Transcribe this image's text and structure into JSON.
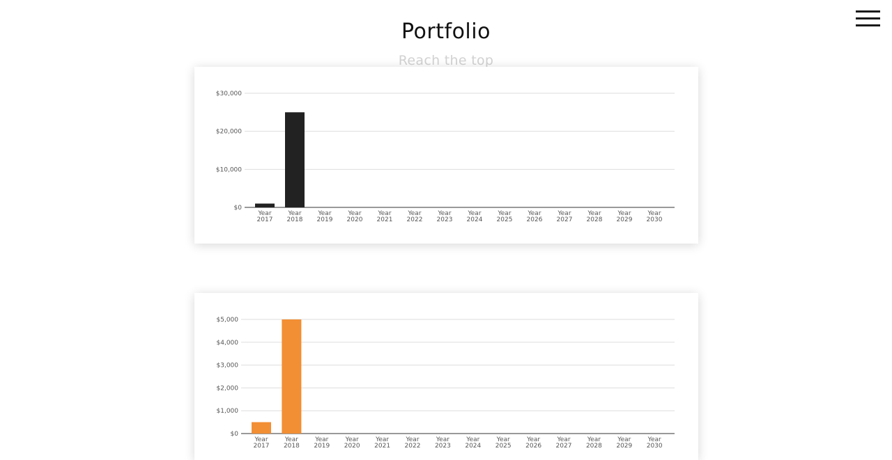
{
  "header": {
    "title": "Portfolio",
    "subtitle": "Reach the top",
    "menu_icon": "hamburger-menu-icon"
  },
  "chart_data": [
    {
      "type": "bar",
      "categories": [
        "Year 2017",
        "Year 2018",
        "Year 2019",
        "Year 2020",
        "Year 2021",
        "Year 2022",
        "Year 2023",
        "Year 2024",
        "Year 2025",
        "Year 2026",
        "Year 2027",
        "Year 2028",
        "Year 2029",
        "Year 2030"
      ],
      "values": [
        1000,
        25000,
        0,
        0,
        0,
        0,
        0,
        0,
        0,
        0,
        0,
        0,
        0,
        0
      ],
      "ylim": [
        0,
        30000
      ],
      "yticks": [
        0,
        10000,
        20000,
        30000
      ],
      "ytick_labels": [
        "$0",
        "$10,000",
        "$20,000",
        "$30,000"
      ],
      "grid": true,
      "color": "#222222"
    },
    {
      "type": "bar",
      "categories": [
        "Year 2017",
        "Year 2018",
        "Year 2019",
        "Year 2020",
        "Year 2021",
        "Year 2022",
        "Year 2023",
        "Year 2024",
        "Year 2025",
        "Year 2026",
        "Year 2027",
        "Year 2028",
        "Year 2029",
        "Year 2030"
      ],
      "values": [
        500,
        5000,
        0,
        0,
        0,
        0,
        0,
        0,
        0,
        0,
        0,
        0,
        0,
        0
      ],
      "ylim": [
        0,
        5000
      ],
      "yticks": [
        0,
        1000,
        2000,
        3000,
        4000,
        5000
      ],
      "ytick_labels": [
        "$0",
        "$1,000",
        "$2,000",
        "$3,000",
        "$4,000",
        "$5,000"
      ],
      "grid": true,
      "color": "#f28e33"
    }
  ]
}
